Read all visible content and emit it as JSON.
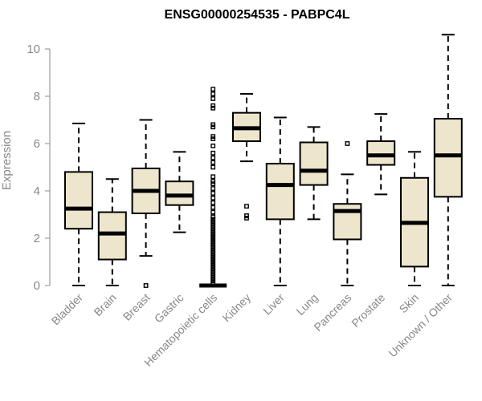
{
  "chart_data": {
    "type": "boxplot",
    "title": "ENSG00000254535 - PABPC4L",
    "xlabel": "",
    "ylabel": "Expression",
    "ylim": [
      0,
      10.6
    ],
    "yticks": [
      0,
      2,
      4,
      6,
      8,
      10
    ],
    "box_color": "#ede6cc",
    "categories": [
      "Bladder",
      "Brain",
      "Breast",
      "Gastric",
      "Hematopoietic cells",
      "Kidney",
      "Liver",
      "Lung",
      "Pancreas",
      "Prostate",
      "Skin",
      "Unknown / Other"
    ],
    "boxes": [
      {
        "name": "Bladder",
        "min": 0,
        "q1": 2.4,
        "median": 3.25,
        "q3": 4.8,
        "max": 6.85,
        "outliers": []
      },
      {
        "name": "Brain",
        "min": 0,
        "q1": 1.1,
        "median": 2.2,
        "q3": 3.1,
        "max": 4.5,
        "outliers": []
      },
      {
        "name": "Breast",
        "min": 1.25,
        "q1": 3.05,
        "median": 4.0,
        "q3": 4.95,
        "max": 7.0,
        "outliers": [
          0
        ]
      },
      {
        "name": "Gastric",
        "min": 2.25,
        "q1": 3.4,
        "median": 3.8,
        "q3": 4.4,
        "max": 5.65,
        "outliers": []
      },
      {
        "name": "Hematopoietic cells",
        "min": 0,
        "q1": 0,
        "median": 0,
        "q3": 0,
        "max": 0,
        "outliers": [
          8.3,
          8.1,
          7.9,
          7.6,
          7.5,
          6.8,
          6.7,
          6.3,
          6.2,
          5.9,
          5.6,
          5.4,
          5.2,
          5.0,
          4.6,
          4.4,
          4.3,
          4.1,
          3.9,
          3.7,
          3.5,
          3.3,
          3.1,
          2.9,
          2.8,
          2.7,
          2.6,
          2.5,
          2.4,
          2.3,
          2.2,
          2.1,
          2.0,
          1.9,
          1.8,
          1.7,
          1.6,
          1.5,
          1.4,
          1.3,
          1.2,
          1.1,
          1.0,
          0.9,
          0.8,
          0.7,
          0.6,
          0.5,
          0.4,
          0.3,
          0.2,
          0.1
        ]
      },
      {
        "name": "Kidney",
        "min": 5.25,
        "q1": 6.1,
        "median": 6.65,
        "q3": 7.3,
        "max": 8.1,
        "outliers": [
          3.35,
          2.95,
          2.85
        ]
      },
      {
        "name": "Liver",
        "min": 0,
        "q1": 2.8,
        "median": 4.25,
        "q3": 5.15,
        "max": 7.1,
        "outliers": []
      },
      {
        "name": "Lung",
        "min": 2.8,
        "q1": 4.25,
        "median": 4.85,
        "q3": 6.05,
        "max": 6.7,
        "outliers": []
      },
      {
        "name": "Pancreas",
        "min": 0,
        "q1": 1.95,
        "median": 3.15,
        "q3": 3.45,
        "max": 4.7,
        "outliers": [
          6.0
        ]
      },
      {
        "name": "Prostate",
        "min": 3.85,
        "q1": 5.1,
        "median": 5.5,
        "q3": 6.1,
        "max": 7.25,
        "outliers": []
      },
      {
        "name": "Skin",
        "min": 0,
        "q1": 0.8,
        "median": 2.65,
        "q3": 4.55,
        "max": 5.65,
        "outliers": []
      },
      {
        "name": "Unknown / Other",
        "min": 0,
        "q1": 3.75,
        "median": 5.5,
        "q3": 7.05,
        "max": 10.6,
        "outliers": []
      }
    ]
  }
}
